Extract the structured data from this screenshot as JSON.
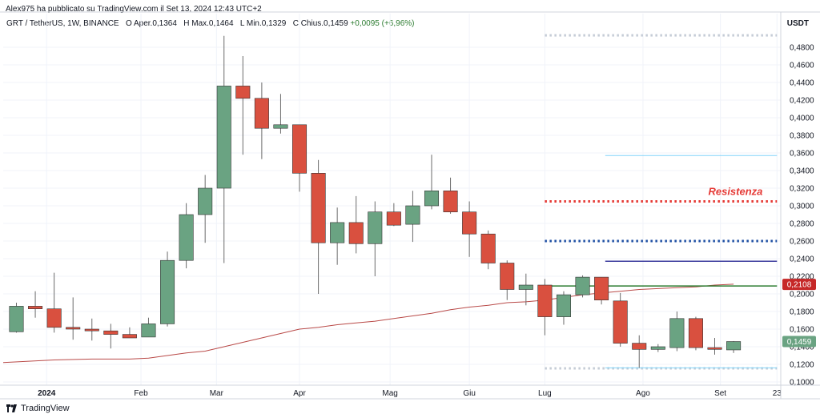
{
  "header": {
    "publisher": "Alex975 ha pubblicato su TradingView.com il Set 13, 2024 12:43 UTC+2",
    "symbol": "GRT / TetherUS, 1W, BINANCE",
    "open_label": "O",
    "open": "Aper.0,1364",
    "high_label": "H",
    "high": "Max.0,1464",
    "low_label": "L",
    "low": "Min.0,1329",
    "close_label": "C",
    "close": "Chius.0,1459",
    "change": "+0,0095 (+6,96%)",
    "currency": "USDT"
  },
  "footer": {
    "brand": "TradingView"
  },
  "colors": {
    "up": "#6aa382",
    "down": "#d9503f",
    "ma": "#b94a48",
    "resistance": "#e53935",
    "support_blue": "#1e4fa3",
    "green_line": "#2e7d32",
    "light_blue": "#81d4fa",
    "dotted_gray": "#c5ccd6"
  },
  "chart_data": {
    "type": "candlestick",
    "y_axis": {
      "ticks": [
        "0,4800",
        "0,4600",
        "0,4400",
        "0,4200",
        "0,4000",
        "0,3800",
        "0,3600",
        "0,3400",
        "0,3200",
        "0,3000",
        "0,2800",
        "0,2600",
        "0,2400",
        "0,2200",
        "0,2000",
        "0,1800",
        "0,1600",
        "0,1400",
        "0,1200",
        "0,1000"
      ],
      "tick_values": [
        0.48,
        0.46,
        0.44,
        0.42,
        0.4,
        0.38,
        0.36,
        0.34,
        0.32,
        0.3,
        0.28,
        0.26,
        0.24,
        0.22,
        0.2,
        0.18,
        0.16,
        0.14,
        0.12,
        0.1
      ],
      "range": [
        0.1,
        0.5
      ],
      "side": "right"
    },
    "x_axis": {
      "labels": [
        {
          "text": "2024",
          "week": 1.6
        },
        {
          "text": "Feb",
          "week": 6.6
        },
        {
          "text": "Mar",
          "week": 10.6
        },
        {
          "text": "Apr",
          "week": 15.0
        },
        {
          "text": "Mag",
          "week": 19.8
        },
        {
          "text": "Giu",
          "week": 24.0
        },
        {
          "text": "Lug",
          "week": 28.0
        },
        {
          "text": "Ago",
          "week": 33.2
        },
        {
          "text": "Set",
          "week": 37.3
        },
        {
          "text": "23",
          "week": 40.3
        }
      ],
      "range": [
        -0.7,
        40.5
      ]
    },
    "candles": [
      {
        "o": 0.157,
        "h": 0.19,
        "l": 0.156,
        "c": 0.186
      },
      {
        "o": 0.186,
        "h": 0.203,
        "l": 0.173,
        "c": 0.183
      },
      {
        "o": 0.183,
        "h": 0.224,
        "l": 0.156,
        "c": 0.162
      },
      {
        "o": 0.162,
        "h": 0.196,
        "l": 0.148,
        "c": 0.16
      },
      {
        "o": 0.16,
        "h": 0.172,
        "l": 0.147,
        "c": 0.158
      },
      {
        "o": 0.158,
        "h": 0.166,
        "l": 0.138,
        "c": 0.154
      },
      {
        "o": 0.154,
        "h": 0.162,
        "l": 0.15,
        "c": 0.15
      },
      {
        "o": 0.151,
        "h": 0.173,
        "l": 0.151,
        "c": 0.166
      },
      {
        "o": 0.166,
        "h": 0.248,
        "l": 0.163,
        "c": 0.238
      },
      {
        "o": 0.238,
        "h": 0.303,
        "l": 0.229,
        "c": 0.29
      },
      {
        "o": 0.29,
        "h": 0.335,
        "l": 0.258,
        "c": 0.32
      },
      {
        "o": 0.32,
        "h": 0.493,
        "l": 0.235,
        "c": 0.436
      },
      {
        "o": 0.436,
        "h": 0.47,
        "l": 0.358,
        "c": 0.422
      },
      {
        "o": 0.422,
        "h": 0.44,
        "l": 0.353,
        "c": 0.388
      },
      {
        "o": 0.388,
        "h": 0.427,
        "l": 0.382,
        "c": 0.392
      },
      {
        "o": 0.392,
        "h": 0.392,
        "l": 0.316,
        "c": 0.337
      },
      {
        "o": 0.337,
        "h": 0.352,
        "l": 0.2,
        "c": 0.258
      },
      {
        "o": 0.258,
        "h": 0.298,
        "l": 0.233,
        "c": 0.281
      },
      {
        "o": 0.281,
        "h": 0.311,
        "l": 0.246,
        "c": 0.257
      },
      {
        "o": 0.257,
        "h": 0.305,
        "l": 0.22,
        "c": 0.293
      },
      {
        "o": 0.293,
        "h": 0.303,
        "l": 0.277,
        "c": 0.278
      },
      {
        "o": 0.279,
        "h": 0.317,
        "l": 0.259,
        "c": 0.3
      },
      {
        "o": 0.3,
        "h": 0.358,
        "l": 0.296,
        "c": 0.317
      },
      {
        "o": 0.317,
        "h": 0.332,
        "l": 0.291,
        "c": 0.293
      },
      {
        "o": 0.293,
        "h": 0.305,
        "l": 0.242,
        "c": 0.268
      },
      {
        "o": 0.268,
        "h": 0.272,
        "l": 0.228,
        "c": 0.235
      },
      {
        "o": 0.235,
        "h": 0.238,
        "l": 0.193,
        "c": 0.205
      },
      {
        "o": 0.205,
        "h": 0.223,
        "l": 0.187,
        "c": 0.21
      },
      {
        "o": 0.21,
        "h": 0.217,
        "l": 0.153,
        "c": 0.174
      },
      {
        "o": 0.174,
        "h": 0.203,
        "l": 0.165,
        "c": 0.199
      },
      {
        "o": 0.199,
        "h": 0.221,
        "l": 0.196,
        "c": 0.219
      },
      {
        "o": 0.219,
        "h": 0.219,
        "l": 0.188,
        "c": 0.193
      },
      {
        "o": 0.192,
        "h": 0.201,
        "l": 0.14,
        "c": 0.144
      },
      {
        "o": 0.144,
        "h": 0.153,
        "l": 0.116,
        "c": 0.137
      },
      {
        "o": 0.137,
        "h": 0.143,
        "l": 0.134,
        "c": 0.14
      },
      {
        "o": 0.139,
        "h": 0.18,
        "l": 0.135,
        "c": 0.172
      },
      {
        "o": 0.172,
        "h": 0.174,
        "l": 0.136,
        "c": 0.139
      },
      {
        "o": 0.139,
        "h": 0.15,
        "l": 0.131,
        "c": 0.137
      },
      {
        "o": 0.1364,
        "h": 0.1464,
        "l": 0.1329,
        "c": 0.1459
      }
    ],
    "moving_average": [
      [
        -0.7,
        0.122
      ],
      [
        2,
        0.125
      ],
      [
        4,
        0.126
      ],
      [
        6,
        0.126
      ],
      [
        7,
        0.127
      ],
      [
        8,
        0.13
      ],
      [
        9,
        0.133
      ],
      [
        10,
        0.135
      ],
      [
        11,
        0.14
      ],
      [
        12,
        0.145
      ],
      [
        13,
        0.15
      ],
      [
        14,
        0.155
      ],
      [
        15,
        0.16
      ],
      [
        16,
        0.162
      ],
      [
        17,
        0.165
      ],
      [
        18,
        0.167
      ],
      [
        19,
        0.169
      ],
      [
        20,
        0.172
      ],
      [
        21,
        0.175
      ],
      [
        22,
        0.178
      ],
      [
        23,
        0.182
      ],
      [
        24,
        0.185
      ],
      [
        25,
        0.187
      ],
      [
        26,
        0.19
      ],
      [
        27,
        0.191
      ],
      [
        28,
        0.193
      ],
      [
        29,
        0.196
      ],
      [
        30,
        0.199
      ],
      [
        31,
        0.201
      ],
      [
        32,
        0.203
      ],
      [
        33,
        0.205
      ],
      [
        34,
        0.206
      ],
      [
        35,
        0.207
      ],
      [
        36,
        0.208
      ],
      [
        37,
        0.21
      ],
      [
        38,
        0.211
      ]
    ],
    "horizontal_lines": [
      {
        "name": "top-dotted-line",
        "y": 0.4935,
        "x0": 28.0,
        "x1": 40.3,
        "style": "dotted",
        "color": "#c5ccd6"
      },
      {
        "name": "light-blue-line",
        "y": 0.357,
        "x0": 31.2,
        "x1": 40.3,
        "style": "solid",
        "color": "#81d4fa"
      },
      {
        "name": "resistance-line",
        "y": 0.305,
        "x0": 28.0,
        "x1": 40.3,
        "style": "dotted",
        "color": "#e53935"
      },
      {
        "name": "blue-dotted-line",
        "y": 0.26,
        "x0": 28.0,
        "x1": 40.3,
        "style": "dotted",
        "color": "#1e4fa3"
      },
      {
        "name": "purple-line",
        "y": 0.237,
        "x0": 31.2,
        "x1": 40.3,
        "style": "solid",
        "color": "#3d3d9e"
      },
      {
        "name": "green-support-line",
        "y": 0.209,
        "x0": 28.2,
        "x1": 40.3,
        "style": "solid",
        "color": "#2e7d32"
      },
      {
        "name": "bottom-dotted-line",
        "y": 0.1155,
        "x0": 28.0,
        "x1": 40.3,
        "style": "dotted",
        "color": "#c5ccd6"
      },
      {
        "name": "bottom-light-blue-line",
        "y": 0.116,
        "x0": 31.2,
        "x1": 40.3,
        "style": "solid",
        "color": "#81d4fa"
      }
    ],
    "annotations": [
      {
        "text": "Resistenza",
        "y": 0.316,
        "x": 38.1,
        "color": "#e53935"
      }
    ],
    "price_tags": [
      {
        "text": "0,2108",
        "y": 0.2108,
        "color": "#c62828"
      },
      {
        "text": "0,1459",
        "y": 0.1459,
        "color": "#6aa382"
      }
    ]
  }
}
